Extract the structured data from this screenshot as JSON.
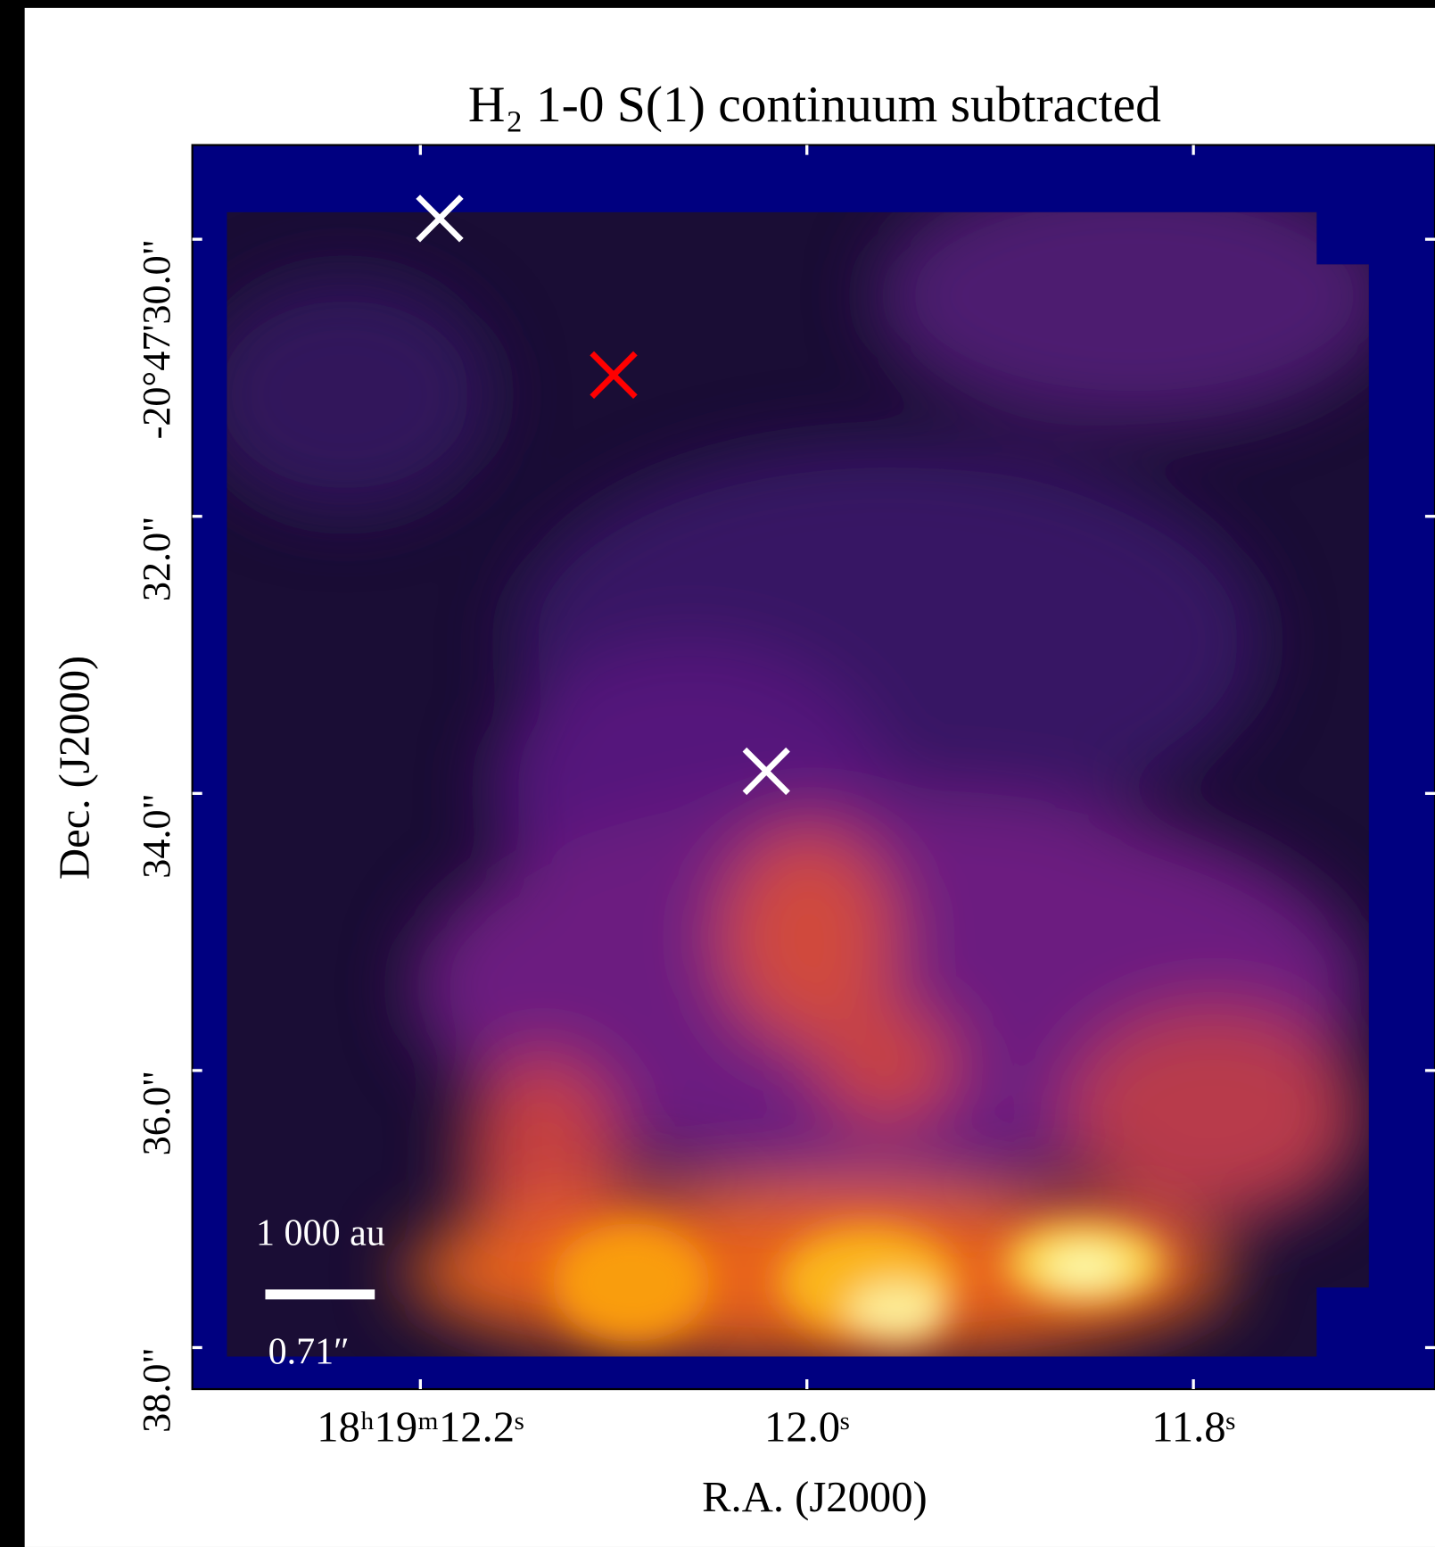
{
  "chart_data": {
    "type": "image",
    "title": "H₂ 1-0 S(1) continuum subtracted",
    "xlabel": "R.A. (J2000)",
    "ylabel": "Dec. (J2000)",
    "xlim": [
      12.318,
      11.675
    ],
    "ylim": [
      38.3,
      29.32
    ],
    "xticks": [
      {
        "value": 12.2,
        "label": "18ʰ19ᵐ12.2ˢ"
      },
      {
        "value": 12.0,
        "label": "12.0ˢ"
      },
      {
        "value": 11.8,
        "label": "11.8ˢ"
      }
    ],
    "yticks": [
      {
        "value": 30,
        "label": "-20°47'30.0\""
      },
      {
        "value": 32,
        "label": "32.0\""
      },
      {
        "value": 34,
        "label": "34.0\""
      },
      {
        "value": 36,
        "label": "36.0\""
      },
      {
        "value": 38,
        "label": "38.0\""
      }
    ],
    "markers": [
      {
        "x": 12.19,
        "y": 29.85,
        "color": "#ffffff"
      },
      {
        "x": 12.1,
        "y": 30.98,
        "color": "#ff0000"
      },
      {
        "x": 12.021,
        "y": 33.84,
        "color": "#ffffff"
      }
    ],
    "scalebar": {
      "length_label": "1 000 au",
      "angle_label": "0.71″"
    },
    "background": "#000080"
  }
}
